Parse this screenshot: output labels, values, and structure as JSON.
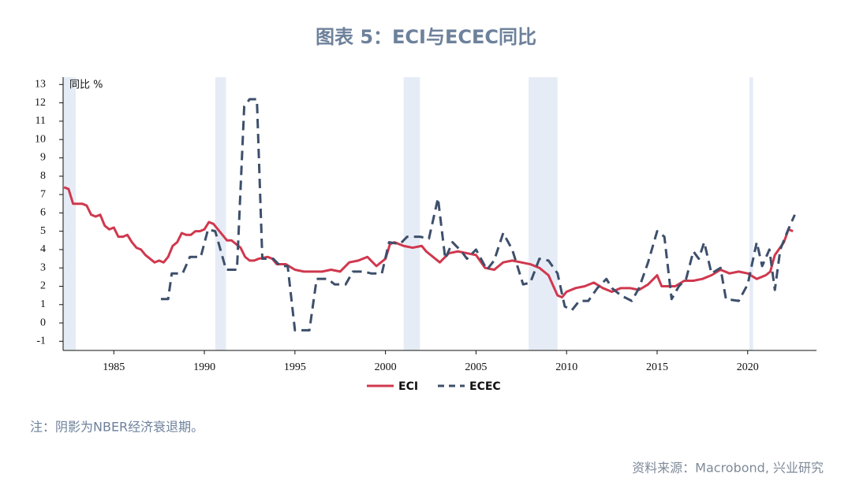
{
  "chart_data": {
    "type": "line",
    "title": "图表 5：ECI与ECEC同比",
    "y_label": "同比 %",
    "note": "注：阴影为NBER经济衰退期。",
    "source": "资料来源：Macrobond, 兴业研究",
    "xlim": [
      1982.2,
      2023.8
    ],
    "ylim": [
      -1.5,
      13.4
    ],
    "xticks": [
      1985,
      1990,
      1995,
      2000,
      2005,
      2010,
      2015,
      2020
    ],
    "yticks": [
      -1,
      0,
      1,
      2,
      3,
      4,
      5,
      6,
      7,
      8,
      9,
      10,
      11,
      12,
      13
    ],
    "recessions": [
      [
        1982.2,
        1982.9
      ],
      [
        1990.6,
        1991.2
      ],
      [
        2001.0,
        2001.9
      ],
      [
        2007.9,
        2009.5
      ],
      [
        2020.1,
        2020.3
      ]
    ],
    "recession_color": "#e6ecf6",
    "legend": "bottom",
    "series": [
      {
        "name": "ECI",
        "color": "#d0384e",
        "dash": false,
        "x": [
          1982.25,
          1982.5,
          1982.75,
          1983,
          1983.25,
          1983.5,
          1983.75,
          1984,
          1984.25,
          1984.5,
          1984.75,
          1985,
          1985.25,
          1985.5,
          1985.75,
          1986,
          1986.25,
          1986.5,
          1986.75,
          1987,
          1987.25,
          1987.5,
          1987.75,
          1988,
          1988.25,
          1988.5,
          1988.75,
          1989,
          1989.25,
          1989.5,
          1989.75,
          1990,
          1990.25,
          1990.5,
          1990.75,
          1991,
          1991.25,
          1991.5,
          1991.75,
          1992,
          1992.25,
          1992.5,
          1992.75,
          1993,
          1993.5,
          1993.75,
          1994,
          1994.5,
          1995,
          1995.5,
          1996,
          1996.5,
          1997,
          1997.5,
          1998,
          1998.5,
          1999,
          1999.5,
          2000,
          2000.25,
          2000.5,
          2001,
          2001.5,
          2002,
          2002.25,
          2002.5,
          2003,
          2003.5,
          2004,
          2004.5,
          2005,
          2005.5,
          2006,
          2006.5,
          2007,
          2007.5,
          2008,
          2008.5,
          2009,
          2009.5,
          2009.75,
          2010,
          2010.5,
          2011,
          2011.5,
          2012,
          2012.5,
          2013,
          2013.5,
          2014,
          2014.5,
          2015,
          2015.25,
          2015.75,
          2016,
          2016.5,
          2017,
          2017.5,
          2018,
          2018.5,
          2019,
          2019.5,
          2020,
          2020.5,
          2021,
          2021.25,
          2021.5,
          2022,
          2022.25,
          2022.5
        ],
        "values": [
          7.4,
          7.3,
          6.5,
          6.5,
          6.5,
          6.4,
          5.9,
          5.8,
          5.9,
          5.3,
          5.1,
          5.2,
          4.7,
          4.7,
          4.8,
          4.4,
          4.1,
          4.0,
          3.7,
          3.5,
          3.3,
          3.4,
          3.3,
          3.6,
          4.2,
          4.4,
          4.9,
          4.8,
          4.8,
          5.0,
          5.0,
          5.1,
          5.5,
          5.4,
          5.1,
          4.8,
          4.5,
          4.5,
          4.3,
          4.1,
          3.6,
          3.4,
          3.4,
          3.5,
          3.6,
          3.5,
          3.2,
          3.2,
          2.9,
          2.8,
          2.8,
          2.8,
          2.9,
          2.8,
          3.3,
          3.4,
          3.6,
          3.1,
          3.5,
          4.3,
          4.4,
          4.2,
          4.1,
          4.2,
          3.9,
          3.7,
          3.3,
          3.8,
          3.9,
          3.8,
          3.7,
          3.0,
          2.9,
          3.3,
          3.4,
          3.3,
          3.2,
          3.0,
          2.6,
          1.5,
          1.4,
          1.7,
          1.9,
          2.0,
          2.2,
          1.9,
          1.7,
          1.9,
          1.9,
          1.8,
          2.1,
          2.6,
          2.0,
          2.0,
          2.0,
          2.3,
          2.3,
          2.4,
          2.6,
          2.9,
          2.7,
          2.8,
          2.7,
          2.4,
          2.6,
          2.8,
          3.7,
          4.4,
          5.1,
          5.0
        ]
      },
      {
        "name": "ECEC",
        "color": "#3d4f6b",
        "dash": true,
        "x": [
          1987.6,
          1988,
          1988.2,
          1988.8,
          1989.2,
          1989.8,
          1990.2,
          1990.6,
          1991.2,
          1991.8,
          1992.2,
          1992.5,
          1992.9,
          1993.2,
          1993.8,
          1994.2,
          1994.6,
          1995,
          1995.8,
          1996.2,
          1996.8,
          1997.2,
          1997.8,
          1998.2,
          1998.8,
          1999.2,
          1999.8,
          2000.2,
          2000.8,
          2001.2,
          2001.9,
          2002.4,
          2002.9,
          2003.3,
          2003.7,
          2004.2,
          2004.5,
          2005,
          2005.6,
          2006,
          2006.5,
          2007,
          2007.6,
          2008,
          2008.5,
          2009,
          2009.5,
          2009.9,
          2010.3,
          2010.7,
          2011.2,
          2011.7,
          2012.2,
          2012.5,
          2013,
          2013.6,
          2014,
          2014.5,
          2015,
          2015.4,
          2015.8,
          2016.2,
          2016.6,
          2017,
          2017.3,
          2017.6,
          2018,
          2018.5,
          2018.8,
          2019.5,
          2020,
          2020.5,
          2020.8,
          2021.2,
          2021.5,
          2021.8,
          2022.2,
          2022.6
        ],
        "values": [
          1.3,
          1.3,
          2.7,
          2.7,
          3.6,
          3.6,
          5.1,
          5.0,
          2.9,
          2.9,
          11.8,
          12.2,
          12.2,
          3.5,
          3.5,
          3.1,
          3.1,
          -0.4,
          -0.4,
          2.4,
          2.4,
          2.1,
          2.1,
          2.8,
          2.8,
          2.7,
          2.7,
          4.4,
          4.3,
          4.7,
          4.7,
          4.6,
          6.8,
          3.5,
          4.4,
          3.9,
          3.5,
          4.0,
          2.9,
          3.4,
          4.9,
          4.0,
          2.1,
          2.2,
          3.5,
          3.4,
          2.7,
          0.9,
          0.7,
          1.2,
          1.2,
          1.9,
          2.4,
          1.9,
          1.5,
          1.2,
          1.9,
          3.3,
          5.0,
          4.7,
          1.3,
          2.0,
          2.4,
          3.9,
          3.5,
          4.4,
          2.7,
          3.0,
          1.3,
          1.2,
          2.1,
          4.4,
          3.1,
          4.0,
          1.8,
          4.0,
          5.0,
          5.9
        ]
      }
    ]
  }
}
